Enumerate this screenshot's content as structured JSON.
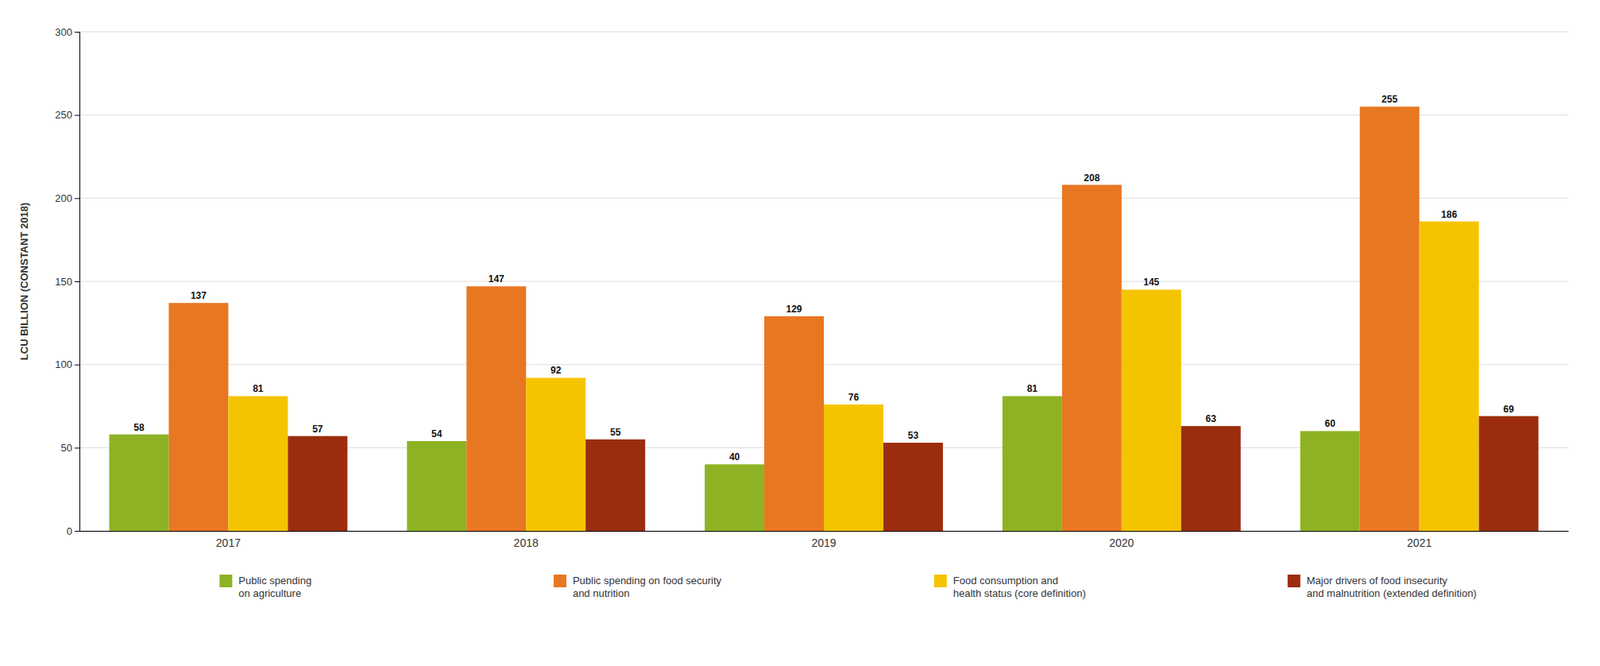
{
  "chart_data": {
    "type": "bar",
    "categories": [
      "2017",
      "2018",
      "2019",
      "2020",
      "2021"
    ],
    "series": [
      {
        "name": "Public spending\non agriculture",
        "color": "#8db324",
        "values": [
          58,
          54,
          40,
          81,
          60
        ]
      },
      {
        "name": "Public spending on food security\nand nutrition",
        "color": "#e87722",
        "values": [
          137,
          147,
          129,
          208,
          255
        ]
      },
      {
        "name": "Food consumption and\nhealth status (core definition)",
        "color": "#f5c400",
        "values": [
          81,
          92,
          76,
          145,
          186
        ]
      },
      {
        "name": "Major drivers of food insecurity\nand malnutrition (extended definition)",
        "color": "#9b2d0e",
        "values": [
          57,
          55,
          53,
          63,
          69
        ]
      }
    ],
    "ylabel": "LCU BILLION (CONSTANT 2018)",
    "ylim": [
      0,
      300
    ],
    "yticks": [
      0,
      50,
      100,
      150,
      200,
      250,
      300
    ],
    "grid": true,
    "data_labels": true,
    "legend": "bottom"
  }
}
